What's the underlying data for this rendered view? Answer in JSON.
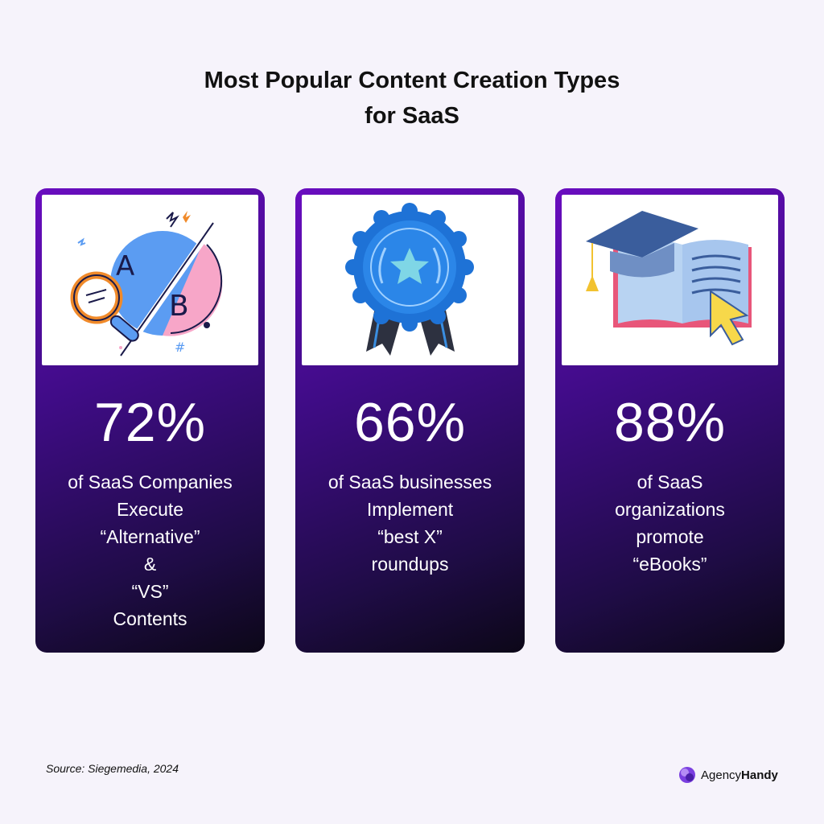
{
  "title": {
    "line1": "Most Popular Content Creation Types",
    "line2": "for SaaS"
  },
  "cards": [
    {
      "percent": "72%",
      "icon": "ab-test-magnifier-icon",
      "lines": [
        "of SaaS Companies",
        "Execute",
        "“Alternative”",
        "&",
        "“VS”",
        "Contents"
      ]
    },
    {
      "percent": "66%",
      "icon": "award-ribbon-icon",
      "lines": [
        "of SaaS businesses",
        "Implement",
        "“best X”",
        "roundups"
      ]
    },
    {
      "percent": "88%",
      "icon": "graduation-book-icon",
      "lines": [
        "of SaaS",
        "organizations",
        "promote",
        "“eBooks”"
      ]
    }
  ],
  "source": "Source: Siegemedia, 2024",
  "brand": {
    "part1": "Agency",
    "part2": "Handy"
  },
  "colors": {
    "background": "#f6f3fb",
    "card_top": "#6a0dc0",
    "card_bottom": "#0c0718",
    "text_on_card": "#ffffff"
  }
}
